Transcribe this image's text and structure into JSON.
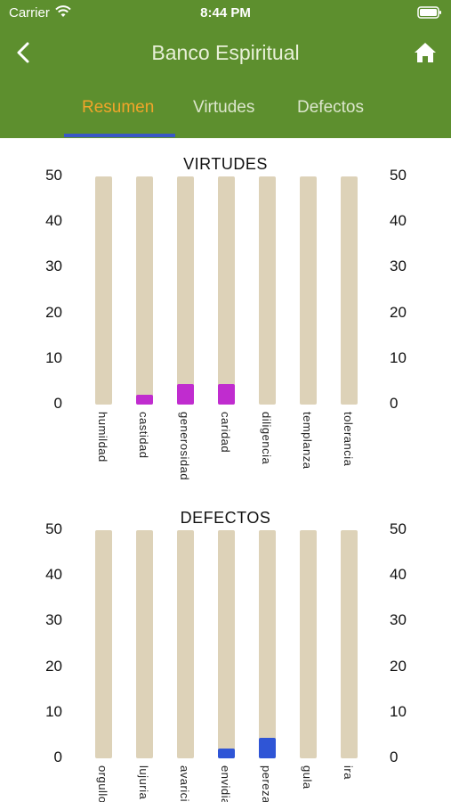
{
  "status_bar": {
    "carrier": "Carrier",
    "time": "8:44 PM"
  },
  "nav": {
    "title": "Banco Espiritual",
    "back_icon": "chevron-left-icon",
    "home_icon": "home-icon"
  },
  "tabs": [
    {
      "label": "Resumen",
      "active": true
    },
    {
      "label": "Virtudes",
      "active": false
    },
    {
      "label": "Defectos",
      "active": false
    }
  ],
  "colors": {
    "header": "#5d8f2e",
    "active_tab": "#f1a52a",
    "indicator": "#3a57c8",
    "track": "#ddd2b8",
    "virtue_fill": "#c02ccf",
    "defect_fill": "#2f55d6"
  },
  "chart_data": [
    {
      "type": "bar",
      "title": "VIRTUDES",
      "categories": [
        "humildad",
        "castidad",
        "generosidad",
        "caridad",
        "diligencia",
        "templanza",
        "tolerancia"
      ],
      "values": [
        0,
        1,
        2,
        2,
        0,
        0,
        0
      ],
      "ylim": [
        0,
        50
      ],
      "yticks": [
        "50",
        "40",
        "30",
        "20",
        "10",
        "0"
      ],
      "color": "#c02ccf"
    },
    {
      "type": "bar",
      "title": "DEFECTOS",
      "categories": [
        "orgullo",
        "lujuria",
        "avaricia",
        "envidia",
        "pereza",
        "gula",
        "ira"
      ],
      "values": [
        0,
        0,
        0,
        1,
        2,
        0,
        0
      ],
      "ylim": [
        0,
        50
      ],
      "yticks": [
        "50",
        "40",
        "30",
        "20",
        "10",
        "0"
      ],
      "color": "#2f55d6"
    }
  ]
}
